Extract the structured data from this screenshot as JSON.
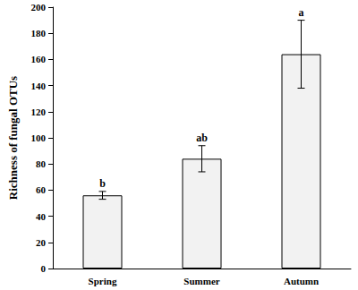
{
  "chart_data": {
    "type": "bar",
    "categories": [
      "Spring",
      "Summer",
      "Autumn"
    ],
    "values": [
      56,
      84,
      164
    ],
    "errors": [
      3,
      10,
      26
    ],
    "annotations": [
      "b",
      "ab",
      "a"
    ],
    "ylabel": "Richness of fungal OTUs",
    "color": "#f2f2f2",
    "ylim": [
      0,
      200
    ],
    "yticks": [
      0,
      20,
      40,
      60,
      80,
      100,
      120,
      140,
      160,
      180,
      200
    ],
    "grid": false
  }
}
